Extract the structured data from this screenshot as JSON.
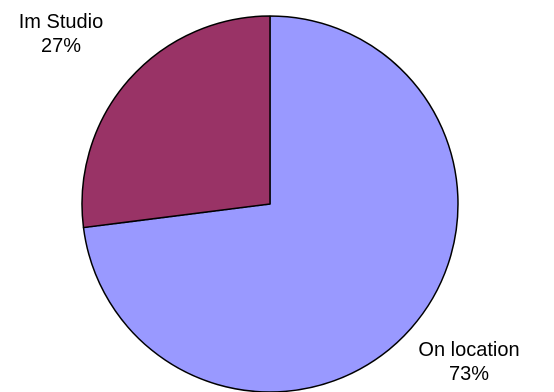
{
  "chart_data": {
    "type": "pie",
    "slices": [
      {
        "label": "On location",
        "value": 73,
        "percent_label": "73%",
        "color": "#9999ff"
      },
      {
        "label": "Im Studio",
        "value": 27,
        "percent_label": "27%",
        "color": "#993366"
      }
    ],
    "title": "",
    "legend": "none",
    "outline_color": "#000000"
  }
}
